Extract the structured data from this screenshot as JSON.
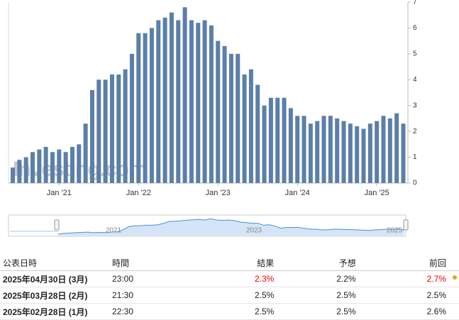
{
  "chart_data": {
    "type": "bar",
    "categories": [
      null,
      null,
      null,
      null,
      null,
      null,
      null,
      "Jan '21",
      null,
      null,
      null,
      null,
      null,
      null,
      null,
      null,
      null,
      null,
      null,
      "Jan '22",
      null,
      null,
      null,
      null,
      null,
      null,
      null,
      null,
      null,
      null,
      null,
      "Jan '23",
      null,
      null,
      null,
      null,
      null,
      null,
      null,
      null,
      null,
      null,
      null,
      "Jan '24",
      null,
      null,
      null,
      null,
      null,
      null,
      null,
      null,
      null,
      null,
      null,
      "Jan '25",
      null,
      null,
      null,
      null
    ],
    "values": [
      0.6,
      0.9,
      1.0,
      1.2,
      1.3,
      1.4,
      1.2,
      1.3,
      1.2,
      1.4,
      1.5,
      2.3,
      3.6,
      4.0,
      4.0,
      4.2,
      4.2,
      4.4,
      5.0,
      5.8,
      5.8,
      6.0,
      6.3,
      6.4,
      6.6,
      6.3,
      6.8,
      6.3,
      6.2,
      6.3,
      6.1,
      5.5,
      5.3,
      5.0,
      5.0,
      4.2,
      4.4,
      3.8,
      3.0,
      3.3,
      3.3,
      3.3,
      2.9,
      2.6,
      2.6,
      2.3,
      2.4,
      2.6,
      2.6,
      2.5,
      2.4,
      2.3,
      2.2,
      2.1,
      2.3,
      2.4,
      2.6,
      2.5,
      2.7,
      2.3
    ],
    "color": "#5b7fa8",
    "ylim": [
      0,
      7
    ],
    "yticks": [
      0,
      1,
      2,
      3,
      4,
      5,
      6,
      7
    ],
    "watermark": "Investing.com",
    "navigator_labels": [
      "2021",
      "2023",
      "2025"
    ]
  },
  "table": {
    "header": [
      "公表日時",
      "時間",
      "結果",
      "予想",
      "前回"
    ],
    "rows": [
      [
        "2025年04月30日 (3月)",
        "23:00",
        "2.3%",
        "2.2%",
        "2.7%"
      ],
      [
        "2025年03月28日 (2月)",
        "21:30",
        "2.5%",
        "2.5%",
        "2.5%"
      ],
      [
        "2025年02月28日 (1月)",
        "22:30",
        "2.5%",
        "2.5%",
        "2.6%"
      ]
    ]
  }
}
